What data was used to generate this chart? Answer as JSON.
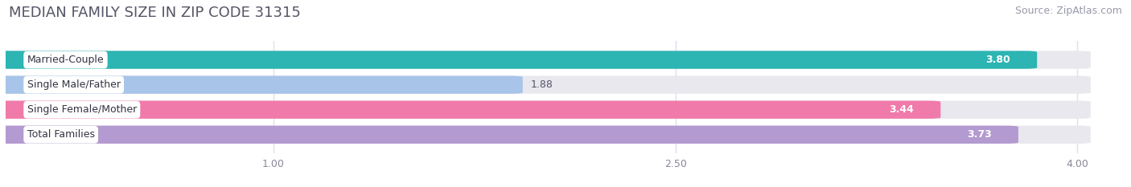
{
  "title": "MEDIAN FAMILY SIZE IN ZIP CODE 31315",
  "source": "Source: ZipAtlas.com",
  "categories": [
    "Married-Couple",
    "Single Male/Father",
    "Single Female/Mother",
    "Total Families"
  ],
  "values": [
    3.8,
    1.88,
    3.44,
    3.73
  ],
  "bar_colors": [
    "#2cb5b2",
    "#a8c4e8",
    "#f07aaa",
    "#b39ad0"
  ],
  "track_color": "#e8e8ee",
  "label_bg_color": "#ffffff",
  "xlim_max": 4.15,
  "data_max": 4.0,
  "xticks": [
    1.0,
    2.5,
    4.0
  ],
  "xtick_labels": [
    "1.00",
    "2.50",
    "4.00"
  ],
  "bar_height": 0.62,
  "title_fontsize": 13,
  "source_fontsize": 9,
  "label_fontsize": 9,
  "value_fontsize": 9,
  "tick_fontsize": 9,
  "background_color": "#ffffff",
  "title_color": "#555566",
  "tick_color": "#888899",
  "grid_color": "#ddddee"
}
